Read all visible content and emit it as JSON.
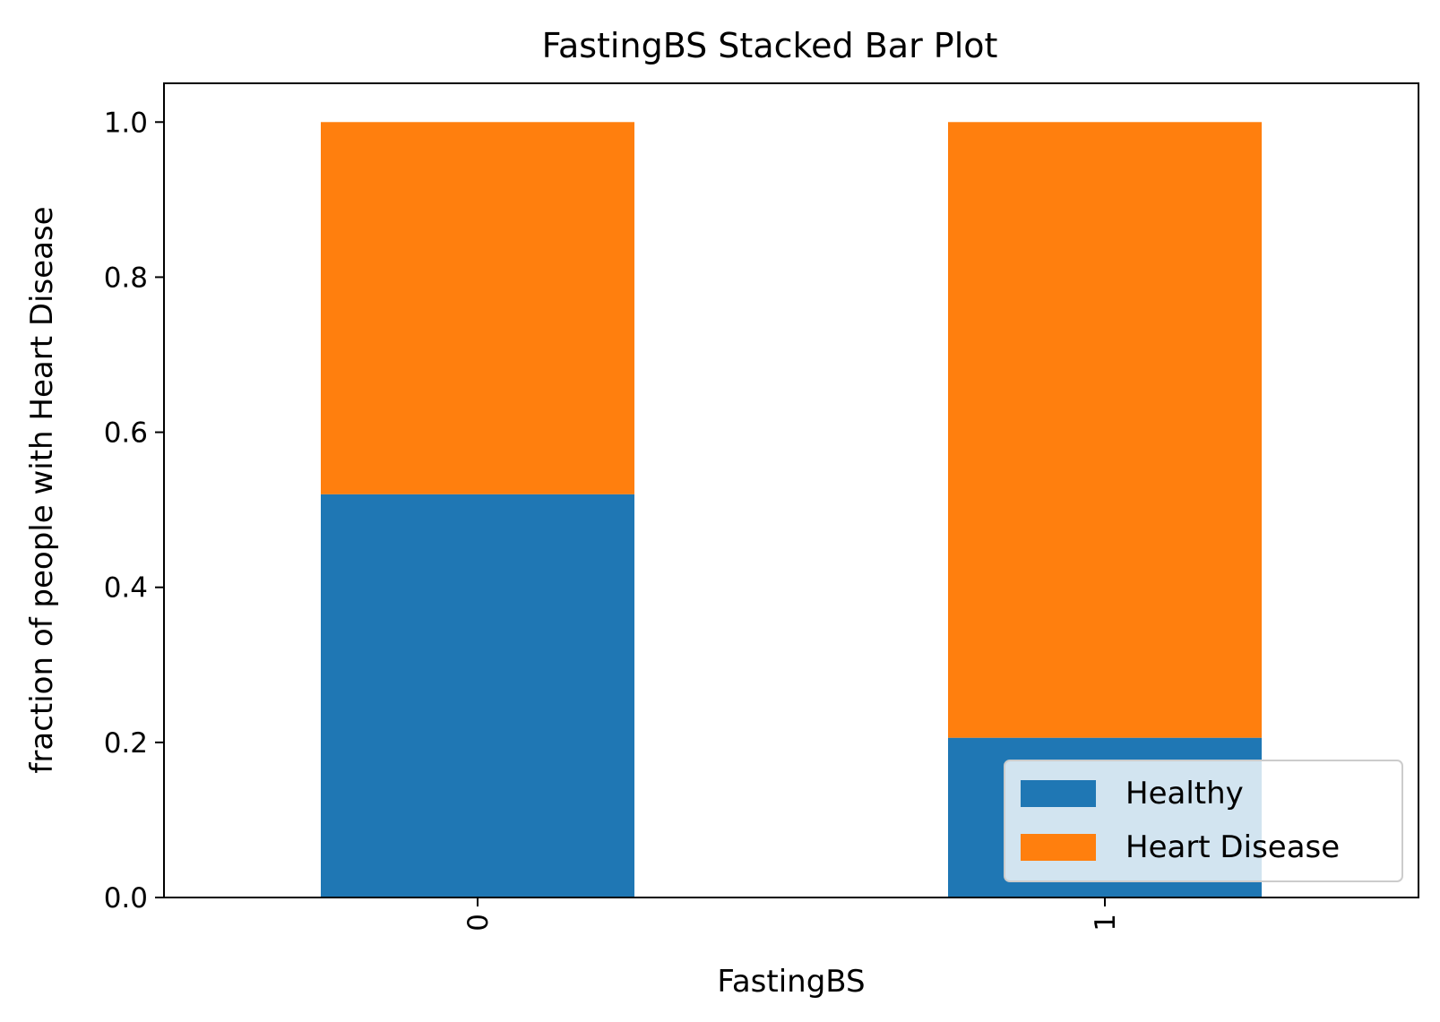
{
  "chart_data": {
    "type": "bar",
    "stacked": true,
    "title": "FastingBS Stacked Bar Plot",
    "xlabel": "FastingBS",
    "ylabel": "fraction of people with Heart Disease",
    "categories": [
      "0",
      "1"
    ],
    "series": [
      {
        "name": "Healthy",
        "values": [
          0.52,
          0.206
        ],
        "color": "#1f77b4"
      },
      {
        "name": "Heart Disease",
        "values": [
          0.48,
          0.794
        ],
        "color": "#ff7f0e"
      }
    ],
    "ylim": [
      0,
      1.05
    ],
    "yticks": [
      0.0,
      0.2,
      0.4,
      0.6,
      0.8,
      1.0
    ],
    "ytick_labels": [
      "0.0",
      "0.2",
      "0.4",
      "0.6",
      "0.8",
      "1.0"
    ],
    "xtick_rotation": "vertical",
    "grid": false,
    "legend_position": "lower-right"
  }
}
